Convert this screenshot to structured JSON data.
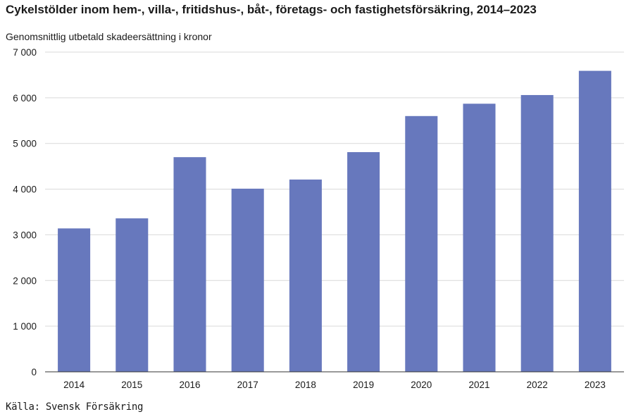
{
  "chart_data": {
    "type": "bar",
    "title": "Cykelstölder inom hem-, villa-, fritidshus-, båt-, företags- och fastighetsförsäkring, 2014–2023",
    "subtitle": "Genomsnittlig utbetald skadeersättning i kronor",
    "categories": [
      "2014",
      "2015",
      "2016",
      "2017",
      "2018",
      "2019",
      "2020",
      "2021",
      "2022",
      "2023"
    ],
    "series": [
      {
        "name": "Genomsnittlig utbetald skadeersättning",
        "values": [
          3140,
          3360,
          4700,
          4010,
          4210,
          4810,
          5600,
          5870,
          6060,
          6590
        ]
      }
    ],
    "xlabel": "",
    "ylabel": "",
    "ylim": [
      0,
      7000
    ],
    "yticks": [
      0,
      1000,
      2000,
      3000,
      4000,
      5000,
      6000,
      7000
    ],
    "ytick_labels": [
      "0",
      "1 000",
      "2 000",
      "3 000",
      "4 000",
      "5 000",
      "6 000",
      "7 000"
    ],
    "grid": true,
    "legend": "none",
    "source": "Källa: Svensk Försäkring",
    "bar_color": "#6778bd",
    "grid_color": "#d9d9d9",
    "axis_color": "#333333"
  }
}
